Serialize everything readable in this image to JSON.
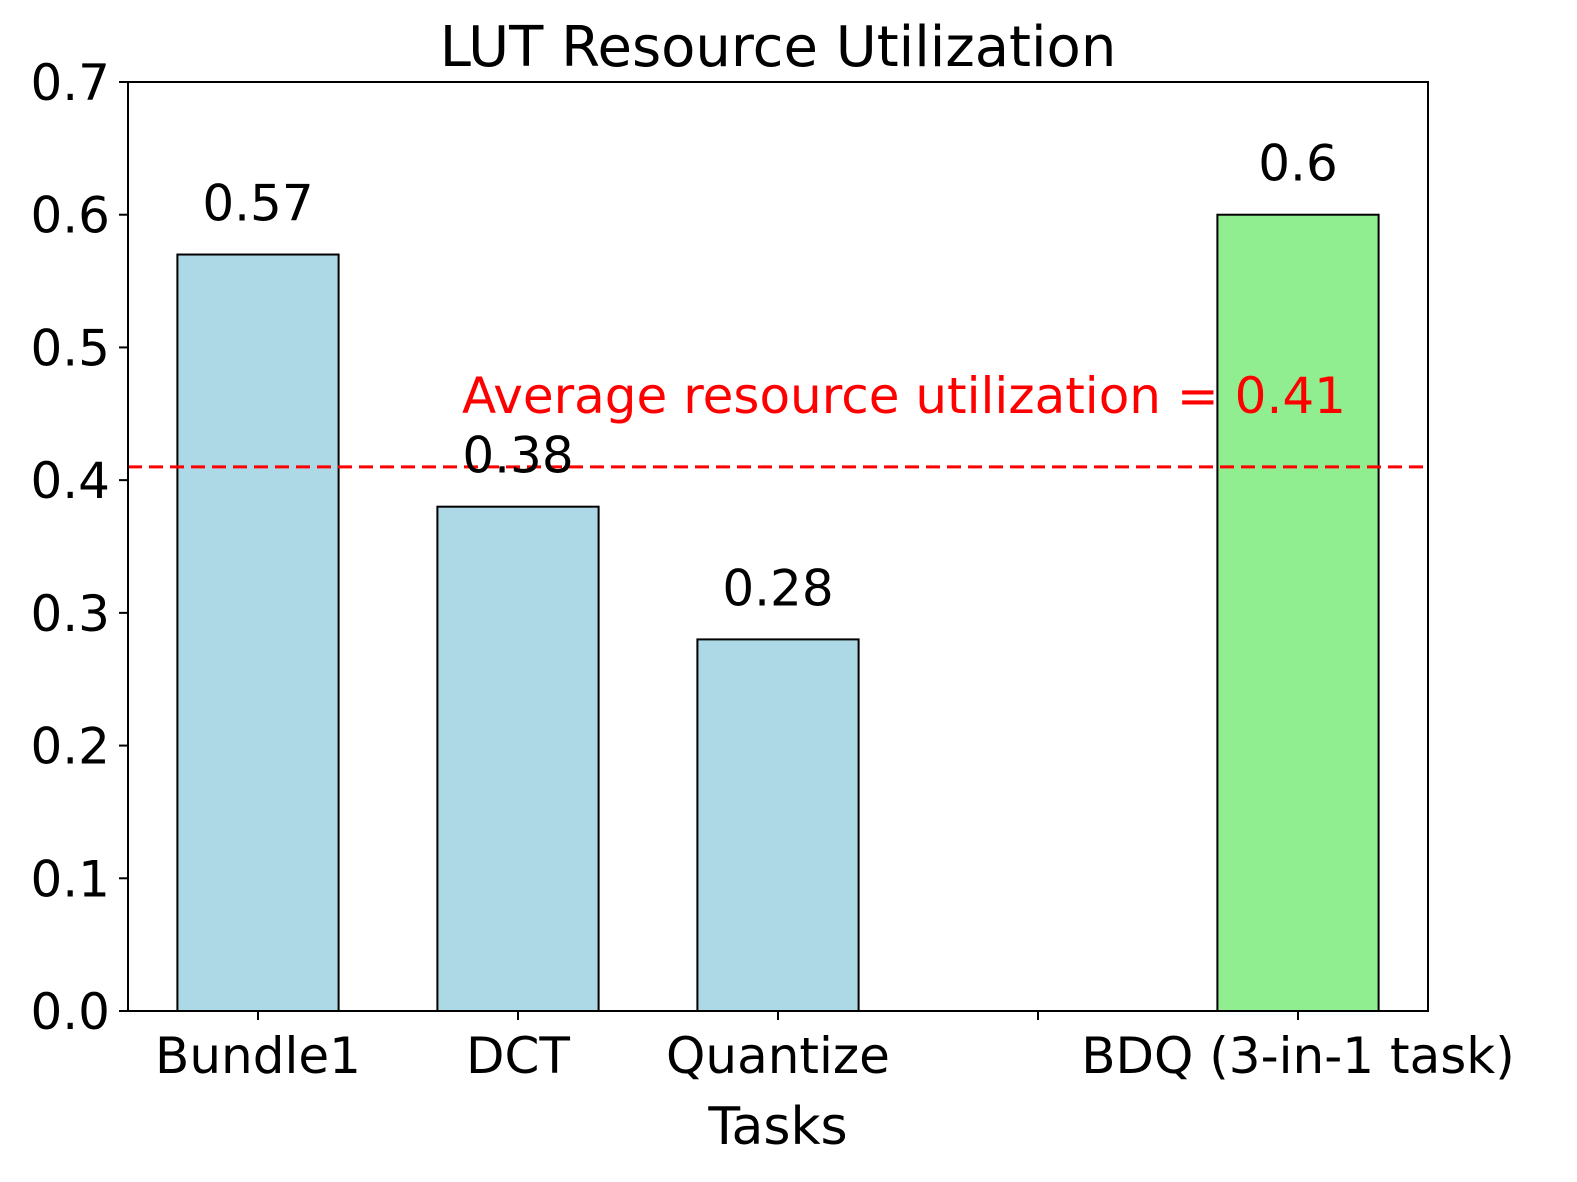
{
  "chart_data": {
    "type": "bar",
    "title": "LUT Resource Utilization",
    "xlabel": "Tasks",
    "ylabel": "",
    "categories": [
      "Bundle1",
      "DCT",
      "Quantize",
      "",
      "BDQ (3-in-1 task)"
    ],
    "values": [
      0.57,
      0.38,
      0.28,
      0.0,
      0.6
    ],
    "value_labels": [
      "0.57",
      "0.38",
      "0.28",
      "",
      "0.6"
    ],
    "bar_colors": [
      "#add8e6",
      "#add8e6",
      "#add8e6",
      "#add8e6",
      "#90ee90"
    ],
    "ylim": [
      0,
      0.7
    ],
    "yticks": [
      "0.0",
      "0.1",
      "0.2",
      "0.3",
      "0.4",
      "0.5",
      "0.6",
      "0.7"
    ],
    "grid": false,
    "reference_line": {
      "value": 0.41,
      "style": "dashed",
      "color": "#ff0000",
      "label": "Average resource utilization = 0.41"
    }
  }
}
